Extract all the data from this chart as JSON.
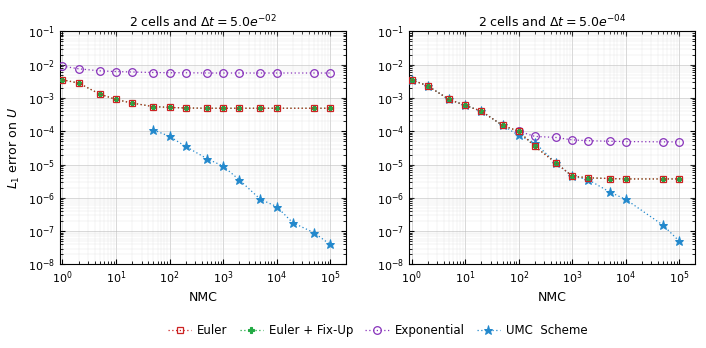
{
  "title1": "2 cells and $\\Delta t = 5.0e^{-02}$",
  "title2": "2 cells and $\\Delta t = 5.0e^{-04}$",
  "xlabel": "NMC",
  "ylabel": "$L_1$ error on $U$",
  "nmc1_euler": [
    1,
    2,
    5,
    10,
    20,
    50,
    100,
    200,
    500,
    1000,
    2000,
    5000,
    10000,
    50000,
    100000
  ],
  "nmc1_fixup": [
    1,
    2,
    5,
    10,
    20,
    50,
    100,
    200,
    500,
    1000,
    2000,
    5000,
    10000,
    50000,
    100000
  ],
  "nmc1_exp": [
    1,
    2,
    5,
    10,
    20,
    50,
    100,
    200,
    500,
    1000,
    2000,
    5000,
    10000,
    50000,
    100000
  ],
  "nmc1_umc": [
    50,
    100,
    200,
    500,
    1000,
    2000,
    5000,
    10000,
    20000,
    50000,
    100000
  ],
  "plot1_euler": [
    0.0035,
    0.0028,
    0.0013,
    0.0009,
    0.0007,
    0.00055,
    0.00052,
    0.0005,
    0.00049,
    0.00049,
    0.00049,
    0.00049,
    0.00049,
    0.00049,
    0.00049
  ],
  "plot1_fixup": [
    0.0035,
    0.0028,
    0.0013,
    0.0009,
    0.0007,
    0.00055,
    0.00052,
    0.0005,
    0.00049,
    0.00049,
    0.00049,
    0.00049,
    0.00049,
    0.00049,
    0.00049
  ],
  "plot1_exp": [
    0.009,
    0.0075,
    0.0065,
    0.0062,
    0.006,
    0.0058,
    0.0057,
    0.0057,
    0.0056,
    0.0056,
    0.0056,
    0.0056,
    0.0056,
    0.0056,
    0.0056
  ],
  "plot1_umc": [
    0.00011,
    7e-05,
    3.5e-05,
    1.5e-05,
    9e-06,
    3.5e-06,
    9e-07,
    5.5e-07,
    1.8e-07,
    9e-08,
    4e-08
  ],
  "nmc2_euler": [
    1,
    2,
    5,
    10,
    20,
    50,
    100,
    200,
    500,
    1000,
    2000,
    5000,
    10000,
    50000,
    100000
  ],
  "nmc2_fixup": [
    1,
    2,
    5,
    10,
    20,
    50,
    100,
    200,
    500,
    1000,
    2000,
    5000,
    10000,
    50000,
    100000
  ],
  "nmc2_exp": [
    100,
    200,
    500,
    1000,
    2000,
    5000,
    10000,
    50000,
    100000
  ],
  "nmc2_umc": [
    1,
    2,
    5,
    10,
    20,
    50,
    100,
    200,
    500,
    1000,
    2000,
    5000,
    10000,
    50000,
    100000
  ],
  "plot2_euler": [
    0.0035,
    0.0023,
    0.0009,
    0.0006,
    0.0004,
    0.00015,
    0.0001,
    3.5e-05,
    1.1e-05,
    4.5e-06,
    4e-06,
    3.8e-06,
    3.7e-06,
    3.7e-06,
    3.7e-06
  ],
  "plot2_fixup": [
    0.0035,
    0.0023,
    0.0009,
    0.0006,
    0.0004,
    0.00015,
    0.0001,
    3.5e-05,
    1.1e-05,
    4.5e-06,
    4e-06,
    3.8e-06,
    3.7e-06,
    3.7e-06,
    3.7e-06
  ],
  "plot2_exp": [
    0.0001,
    7e-05,
    6.5e-05,
    5.5e-05,
    5.2e-05,
    5e-05,
    4.9e-05,
    4.8e-05,
    4.8e-05
  ],
  "plot2_umc": [
    0.0035,
    0.0023,
    0.0009,
    0.0006,
    0.0004,
    0.00015,
    7.5e-05,
    4.5e-05,
    1.1e-05,
    4.5e-06,
    3.5e-06,
    1.5e-06,
    9e-07,
    1.5e-07,
    5e-08
  ],
  "color_euler": "#cc2222",
  "color_fixup": "#22aa44",
  "color_exp": "#8833bb",
  "color_umc": "#2288cc",
  "ylim_lo": 1e-08,
  "ylim_hi": 0.1,
  "xlim_lo": 0.9,
  "xlim_hi": 200000,
  "legend_labels": [
    "Euler",
    "Euler + Fix-Up",
    "Exponential",
    "UMC  Scheme"
  ]
}
